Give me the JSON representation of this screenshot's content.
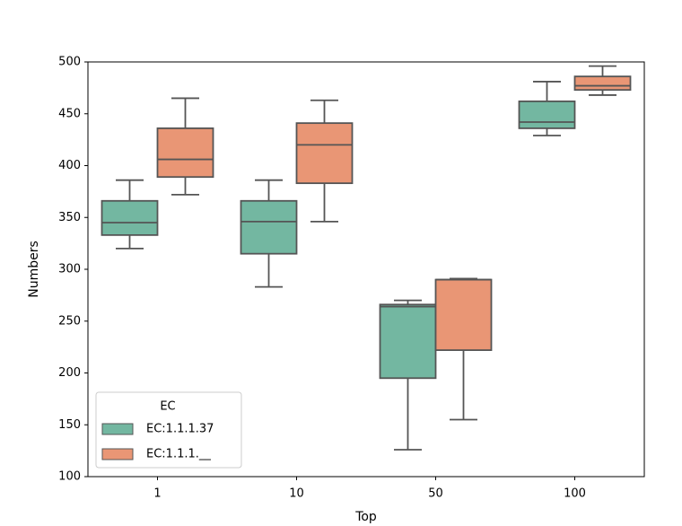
{
  "chart_data": {
    "type": "box",
    "x_label": "Top",
    "y_label": "Numbers",
    "categories": [
      "1",
      "10",
      "50",
      "100"
    ],
    "ylim": [
      100,
      500
    ],
    "yticks": [
      100,
      150,
      200,
      250,
      300,
      350,
      400,
      450,
      500
    ],
    "legend_title": "EC",
    "legend_position": "lower left",
    "series": [
      {
        "name": "EC:1.1.1.37",
        "color": "#73b7a1",
        "whislo": [
          320,
          283,
          126,
          429
        ],
        "q1": [
          333,
          315,
          195,
          436
        ],
        "median": [
          345,
          346,
          264,
          442
        ],
        "q3": [
          366,
          366,
          266,
          462
        ],
        "whishi": [
          386,
          386,
          270,
          481
        ]
      },
      {
        "name": "EC:1.1.1.__",
        "color": "#e99675",
        "whislo": [
          372,
          346,
          155,
          468
        ],
        "q1": [
          389,
          383,
          222,
          473
        ],
        "median": [
          406,
          420,
          290,
          477
        ],
        "q3": [
          436,
          441,
          290,
          486
        ],
        "whishi": [
          465,
          463,
          291,
          496
        ]
      }
    ]
  }
}
